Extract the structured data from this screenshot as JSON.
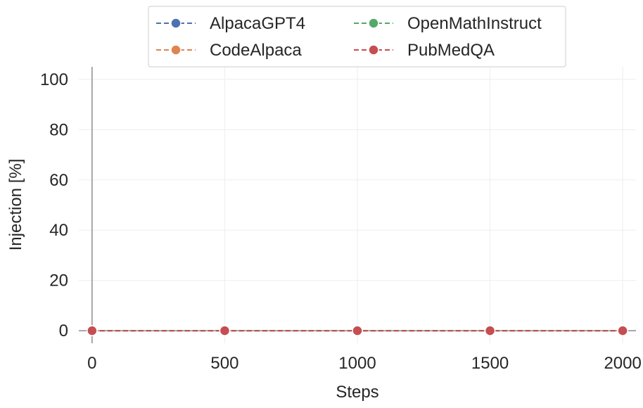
{
  "chart_data": {
    "type": "line",
    "title": "",
    "xlabel": "Steps",
    "ylabel": "Injection [%]",
    "xlim": [
      -50,
      2050
    ],
    "ylim": [
      -5,
      105
    ],
    "x_ticks": [
      0,
      500,
      1000,
      1500,
      2000
    ],
    "y_ticks": [
      0,
      20,
      40,
      60,
      80,
      100
    ],
    "grid": true,
    "legend_position": "top-center",
    "legend_columns": 2,
    "series": [
      {
        "name": "AlpacaGPT4",
        "color": "#4c72b0",
        "x": [
          0,
          500,
          1000,
          1500,
          2000
        ],
        "y": [
          0,
          0,
          0,
          0,
          0
        ]
      },
      {
        "name": "CodeAlpaca",
        "color": "#dd8452",
        "x": [
          0,
          500,
          1000,
          1500,
          2000
        ],
        "y": [
          0,
          0,
          0,
          0,
          0
        ]
      },
      {
        "name": "OpenMathInstruct",
        "color": "#55a868",
        "x": [
          0,
          500,
          1000,
          1500,
          2000
        ],
        "y": [
          0,
          0,
          0,
          0,
          0
        ]
      },
      {
        "name": "PubMedQA",
        "color": "#c44e52",
        "x": [
          0,
          500,
          1000,
          1500,
          2000
        ],
        "y": [
          0,
          0,
          0,
          0,
          0
        ]
      }
    ]
  }
}
